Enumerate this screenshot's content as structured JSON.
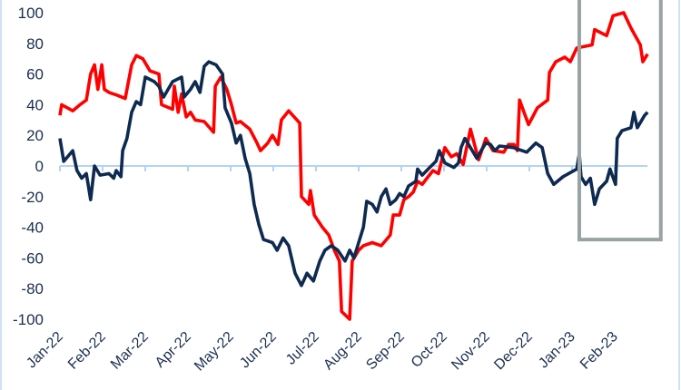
{
  "chart_data": {
    "type": "line",
    "title": "",
    "xlabel": "",
    "ylabel": "",
    "ylim": [
      -100,
      100
    ],
    "yticks": [
      "100",
      "80",
      "60",
      "40",
      "20",
      "0",
      "-20",
      "-40",
      "-60",
      "-80",
      "-100"
    ],
    "ytick_values": [
      100,
      80,
      60,
      40,
      20,
      0,
      -20,
      -40,
      -60,
      -80,
      -100
    ],
    "x_unit": "months since Jan-22",
    "xlim": [
      0,
      13.77
    ],
    "xticks": [
      "Jan-22",
      "Feb-22",
      "Mar-22",
      "Apr-22",
      "May-22",
      "Jun-22",
      "Jul-22",
      "Aug-22",
      "Sep-22",
      "Oct-22",
      "Nov-22",
      "Dec-22",
      "Jan-23",
      "Feb-23"
    ],
    "grid": false,
    "legend": "none",
    "colors": {
      "red_series": "#ff0000",
      "navy_series": "#0e2a50",
      "zero_line": "#b4d4f4",
      "highlight_box": "#9aa3a3"
    },
    "series": [
      {
        "name": "red",
        "color": "#ff0000",
        "x": [
          0,
          0.04,
          0.3,
          0.47,
          0.62,
          0.72,
          0.81,
          0.89,
          0.98,
          1.04,
          1.15,
          1.36,
          1.53,
          1.68,
          1.79,
          1.94,
          2.11,
          2.32,
          2.38,
          2.64,
          2.68,
          2.77,
          2.85,
          2.96,
          3.06,
          3.17,
          3.38,
          3.6,
          3.64,
          3.77,
          3.91,
          4.02,
          4.13,
          4.23,
          4.45,
          4.62,
          4.7,
          4.87,
          4.98,
          5.11,
          5.19,
          5.36,
          5.62,
          5.66,
          5.83,
          5.87,
          5.96,
          6.15,
          6.3,
          6.43,
          6.55,
          6.6,
          6.79,
          6.85,
          7.0,
          7.11,
          7.32,
          7.53,
          7.74,
          7.81,
          7.96,
          8.06,
          8.17,
          8.28,
          8.38,
          8.49,
          8.6,
          8.74,
          8.87,
          9.02,
          9.17,
          9.3,
          9.45,
          9.62,
          9.81,
          9.98,
          10.15,
          10.4,
          10.51,
          10.64,
          10.72,
          10.77,
          10.98,
          11.19,
          11.43,
          11.47,
          11.62,
          11.83,
          11.96,
          12.11,
          12.47,
          12.53,
          12.81,
          12.96,
          13.21,
          13.38,
          13.6,
          13.66,
          13.77
        ],
        "y": [
          33,
          40,
          36,
          40,
          43,
          60,
          66,
          50,
          66,
          50,
          48,
          46,
          44,
          66,
          72,
          70,
          62,
          60,
          40,
          37,
          52,
          35,
          47,
          32,
          35,
          30,
          29,
          22,
          52,
          58,
          50,
          40,
          28,
          29,
          24,
          15,
          10,
          15,
          20,
          14,
          30,
          36,
          28,
          -20,
          -25,
          -16,
          -32,
          -40,
          -45,
          -55,
          -62,
          -95,
          -100,
          -62,
          -55,
          -52,
          -50,
          -52,
          -45,
          -32,
          -32,
          -22,
          -20,
          -17,
          -10,
          -12,
          -8,
          -3,
          -5,
          12,
          6,
          8,
          1,
          24,
          4,
          18,
          10,
          9,
          14,
          14,
          10,
          43,
          27,
          38,
          43,
          61,
          68,
          71,
          68,
          77,
          79,
          89,
          85,
          98,
          100,
          90,
          79,
          68,
          73
        ]
      },
      {
        "name": "navy",
        "color": "#0e2a50",
        "x": [
          0,
          0.09,
          0.3,
          0.4,
          0.51,
          0.62,
          0.72,
          0.81,
          0.94,
          1.15,
          1.26,
          1.32,
          1.43,
          1.47,
          1.57,
          1.68,
          1.79,
          1.89,
          2.0,
          2.21,
          2.32,
          2.43,
          2.64,
          2.85,
          2.91,
          3.06,
          3.17,
          3.28,
          3.38,
          3.49,
          3.66,
          3.81,
          3.87,
          4.02,
          4.13,
          4.23,
          4.34,
          4.45,
          4.55,
          4.66,
          4.77,
          4.98,
          5.09,
          5.23,
          5.36,
          5.51,
          5.66,
          5.79,
          5.94,
          6.09,
          6.21,
          6.36,
          6.51,
          6.68,
          6.79,
          6.89,
          7.0,
          7.11,
          7.19,
          7.32,
          7.43,
          7.53,
          7.64,
          7.74,
          7.87,
          7.96,
          8.06,
          8.17,
          8.34,
          8.38,
          8.49,
          8.7,
          8.81,
          8.89,
          9.02,
          9.23,
          9.34,
          9.4,
          9.49,
          9.62,
          9.77,
          9.87,
          9.98,
          10.09,
          10.19,
          10.3,
          10.62,
          10.94,
          11.15,
          11.3,
          11.43,
          11.57,
          11.79,
          12.11,
          12.17,
          12.21,
          12.32,
          12.43,
          12.53,
          12.64,
          12.81,
          12.89,
          13.02,
          13.06,
          13.17,
          13.38,
          13.45,
          13.53,
          13.7,
          13.77
        ],
        "y": [
          18,
          3,
          10,
          -3,
          -8,
          -5,
          -22,
          0,
          -6,
          -5,
          -8,
          -3,
          -7,
          10,
          18,
          35,
          42,
          40,
          58,
          55,
          52,
          45,
          55,
          58,
          45,
          50,
          55,
          48,
          65,
          68,
          66,
          60,
          38,
          28,
          15,
          20,
          5,
          -5,
          -25,
          -38,
          -48,
          -50,
          -55,
          -47,
          -52,
          -70,
          -78,
          -70,
          -75,
          -62,
          -55,
          -52,
          -55,
          -62,
          -55,
          -60,
          -50,
          -40,
          -23,
          -25,
          -30,
          -20,
          -15,
          -25,
          -22,
          -18,
          -20,
          -13,
          -10,
          -2,
          -6,
          0,
          3,
          10,
          2,
          -1,
          2,
          12,
          18,
          12,
          5,
          10,
          15,
          14,
          10,
          13,
          12,
          9,
          15,
          12,
          -5,
          -12,
          -7,
          -2,
          8,
          -7,
          -12,
          -8,
          -25,
          -15,
          -10,
          -2,
          -12,
          18,
          23,
          25,
          35,
          25,
          33,
          35
        ]
      }
    ],
    "highlight": {
      "x_from": 12.17,
      "x_to": 14.08,
      "y_bottom": -48
    }
  }
}
